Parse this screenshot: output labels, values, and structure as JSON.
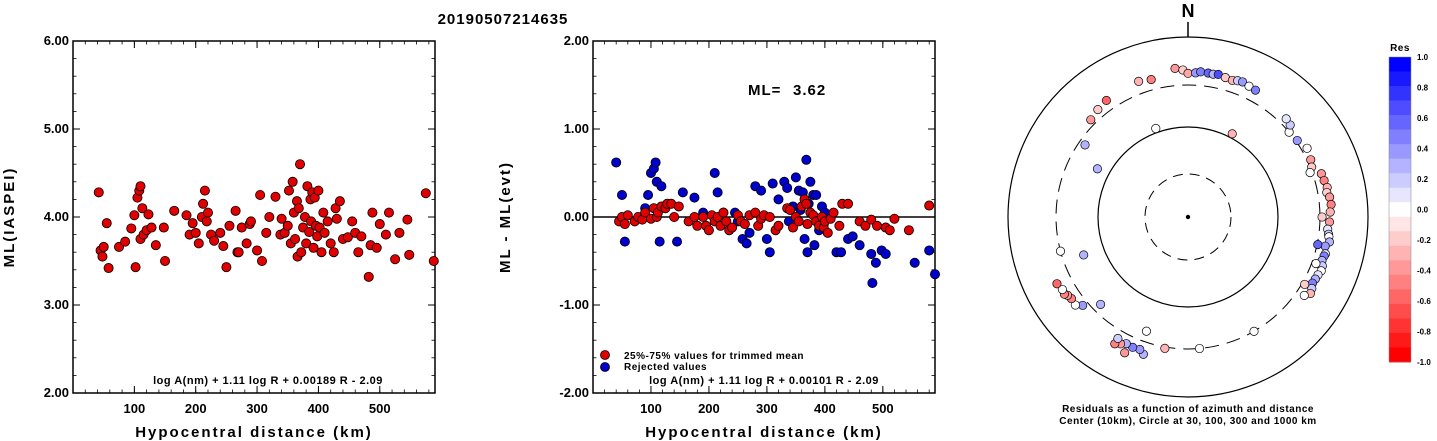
{
  "title": "20190507214635",
  "chart_data": [
    {
      "type": "scatter",
      "ylabel": "ML(IASPEI)",
      "xlabel": "Hypocentral distance (km)",
      "xlim": [
        0,
        590
      ],
      "ylim": [
        2.0,
        6.0
      ],
      "xticks": [
        "100",
        "200",
        "300",
        "400",
        "500"
      ],
      "yticks": [
        "2.00",
        "3.00",
        "4.00",
        "5.00",
        "6.00"
      ],
      "formula": "log A(nm) + 1.11 log R + 0.00189 R - 2.09",
      "marker_color": "#e00000",
      "points": [
        [
          42,
          4.28
        ],
        [
          45,
          3.62
        ],
        [
          48,
          3.55
        ],
        [
          50,
          3.66
        ],
        [
          55,
          3.93
        ],
        [
          58,
          3.42
        ],
        [
          75,
          3.66
        ],
        [
          85,
          3.72
        ],
        [
          95,
          3.87
        ],
        [
          100,
          4.02
        ],
        [
          102,
          3.43
        ],
        [
          105,
          4.22
        ],
        [
          108,
          4.3
        ],
        [
          110,
          4.35
        ],
        [
          110,
          3.75
        ],
        [
          113,
          4.1
        ],
        [
          115,
          3.8
        ],
        [
          120,
          3.85
        ],
        [
          123,
          4.03
        ],
        [
          128,
          3.88
        ],
        [
          135,
          3.68
        ],
        [
          148,
          3.88
        ],
        [
          150,
          3.5
        ],
        [
          165,
          4.07
        ],
        [
          185,
          4.02
        ],
        [
          190,
          3.8
        ],
        [
          195,
          3.93
        ],
        [
          200,
          3.82
        ],
        [
          205,
          3.7
        ],
        [
          210,
          4.0
        ],
        [
          212,
          4.15
        ],
        [
          215,
          4.3
        ],
        [
          218,
          3.95
        ],
        [
          220,
          4.05
        ],
        [
          225,
          3.8
        ],
        [
          230,
          3.73
        ],
        [
          240,
          3.82
        ],
        [
          245,
          3.67
        ],
        [
          250,
          3.43
        ],
        [
          255,
          3.9
        ],
        [
          265,
          4.07
        ],
        [
          268,
          3.6
        ],
        [
          270,
          3.6
        ],
        [
          275,
          3.88
        ],
        [
          283,
          3.7
        ],
        [
          288,
          3.92
        ],
        [
          290,
          3.95
        ],
        [
          300,
          3.62
        ],
        [
          305,
          4.25
        ],
        [
          308,
          3.5
        ],
        [
          315,
          3.82
        ],
        [
          320,
          4.0
        ],
        [
          330,
          4.23
        ],
        [
          338,
          3.8
        ],
        [
          340,
          3.98
        ],
        [
          345,
          3.82
        ],
        [
          350,
          3.9
        ],
        [
          352,
          4.3
        ],
        [
          355,
          3.7
        ],
        [
          358,
          4.4
        ],
        [
          360,
          4.05
        ],
        [
          362,
          3.75
        ],
        [
          365,
          4.18
        ],
        [
          366,
          3.55
        ],
        [
          368,
          4.1
        ],
        [
          370,
          4.6
        ],
        [
          372,
          3.6
        ],
        [
          375,
          3.88
        ],
        [
          378,
          4.0
        ],
        [
          380,
          3.7
        ],
        [
          382,
          4.35
        ],
        [
          385,
          3.83
        ],
        [
          387,
          4.2
        ],
        [
          388,
          3.95
        ],
        [
          390,
          4.28
        ],
        [
          392,
          3.65
        ],
        [
          394,
          4.22
        ],
        [
          396,
          3.9
        ],
        [
          398,
          3.78
        ],
        [
          400,
          4.3
        ],
        [
          402,
          3.88
        ],
        [
          405,
          3.6
        ],
        [
          408,
          4.05
        ],
        [
          410,
          3.82
        ],
        [
          415,
          3.95
        ],
        [
          420,
          3.7
        ],
        [
          425,
          3.6
        ],
        [
          428,
          4.1
        ],
        [
          430,
          3.98
        ],
        [
          435,
          4.18
        ],
        [
          440,
          3.75
        ],
        [
          448,
          3.77
        ],
        [
          455,
          3.95
        ],
        [
          460,
          3.82
        ],
        [
          465,
          3.6
        ],
        [
          470,
          3.78
        ],
        [
          482,
          3.32
        ],
        [
          485,
          3.68
        ],
        [
          488,
          4.05
        ],
        [
          495,
          3.65
        ],
        [
          500,
          3.92
        ],
        [
          510,
          3.8
        ],
        [
          515,
          4.05
        ],
        [
          525,
          3.52
        ],
        [
          532,
          3.82
        ],
        [
          545,
          3.97
        ],
        [
          548,
          3.57
        ],
        [
          575,
          4.27
        ],
        [
          588,
          3.5
        ]
      ]
    },
    {
      "type": "scatter",
      "ylabel": "ML - ML(evt)",
      "xlabel": "Hypocentral distance (km)",
      "xlim": [
        0,
        590
      ],
      "ylim": [
        -2.0,
        2.0
      ],
      "xticks": [
        "100",
        "200",
        "300",
        "400",
        "500"
      ],
      "yticks": [
        "-2.00",
        "-1.00",
        "0.00",
        "1.00",
        "2.00"
      ],
      "ml_label": "ML=",
      "ml_value": "3.62",
      "legend": [
        "25%-75% values for trimmed mean",
        "Rejected values"
      ],
      "formula": "log A(nm) + 1.11 log R + 0.00101 R - 2.09",
      "colors": {
        "trimmed": "#e00000",
        "rejected": "#0000cc"
      },
      "trimmed": [
        [
          45,
          -0.05
        ],
        [
          50,
          0.0
        ],
        [
          55,
          -0.08
        ],
        [
          60,
          0.02
        ],
        [
          72,
          -0.05
        ],
        [
          78,
          0.0
        ],
        [
          85,
          -0.03
        ],
        [
          90,
          0.05
        ],
        [
          100,
          -0.02
        ],
        [
          105,
          0.1
        ],
        [
          110,
          0.0
        ],
        [
          112,
          0.05
        ],
        [
          118,
          0.12
        ],
        [
          125,
          0.1
        ],
        [
          128,
          0.15
        ],
        [
          135,
          0.15
        ],
        [
          140,
          0.0
        ],
        [
          148,
          0.12
        ],
        [
          165,
          -0.05
        ],
        [
          175,
          0.0
        ],
        [
          180,
          -0.1
        ],
        [
          190,
          0.0
        ],
        [
          195,
          -0.1
        ],
        [
          200,
          -0.15
        ],
        [
          205,
          0.02
        ],
        [
          210,
          -0.05
        ],
        [
          215,
          0.0
        ],
        [
          220,
          -0.1
        ],
        [
          225,
          0.05
        ],
        [
          230,
          -0.05
        ],
        [
          235,
          -0.15
        ],
        [
          240,
          -0.12
        ],
        [
          250,
          0.02
        ],
        [
          255,
          -0.05
        ],
        [
          262,
          -0.08
        ],
        [
          270,
          0.02
        ],
        [
          280,
          0.05
        ],
        [
          285,
          -0.1
        ],
        [
          290,
          -0.02
        ],
        [
          295,
          0.02
        ],
        [
          305,
          0.0
        ],
        [
          315,
          -0.15
        ],
        [
          320,
          -0.1
        ],
        [
          335,
          0.1
        ],
        [
          340,
          0.08
        ],
        [
          345,
          -0.12
        ],
        [
          350,
          0.0
        ],
        [
          355,
          -0.05
        ],
        [
          360,
          0.12
        ],
        [
          365,
          0.2
        ],
        [
          368,
          0.15
        ],
        [
          370,
          -0.08
        ],
        [
          375,
          0.05
        ],
        [
          380,
          0.02
        ],
        [
          385,
          -0.05
        ],
        [
          390,
          -0.1
        ],
        [
          395,
          0.0
        ],
        [
          398,
          -0.12
        ],
        [
          400,
          -0.05
        ],
        [
          405,
          -0.18
        ],
        [
          410,
          -0.02
        ],
        [
          415,
          0.05
        ],
        [
          425,
          -0.1
        ],
        [
          430,
          0.15
        ],
        [
          440,
          0.15
        ],
        [
          460,
          -0.05
        ],
        [
          470,
          -0.1
        ],
        [
          480,
          -0.03
        ],
        [
          490,
          -0.1
        ],
        [
          505,
          -0.12
        ],
        [
          512,
          -0.15
        ],
        [
          520,
          -0.02
        ],
        [
          545,
          -0.15
        ],
        [
          580,
          0.13
        ]
      ],
      "rejected": [
        [
          40,
          0.62
        ],
        [
          50,
          0.25
        ],
        [
          55,
          -0.28
        ],
        [
          90,
          0.1
        ],
        [
          95,
          0.25
        ],
        [
          100,
          0.5
        ],
        [
          105,
          0.55
        ],
        [
          108,
          0.62
        ],
        [
          110,
          0.4
        ],
        [
          115,
          -0.28
        ],
        [
          118,
          0.35
        ],
        [
          145,
          -0.28
        ],
        [
          155,
          0.28
        ],
        [
          175,
          0.22
        ],
        [
          190,
          0.05
        ],
        [
          210,
          0.5
        ],
        [
          215,
          0.28
        ],
        [
          225,
          0.05
        ],
        [
          245,
          0.05
        ],
        [
          250,
          -0.05
        ],
        [
          258,
          -0.25
        ],
        [
          265,
          -0.3
        ],
        [
          270,
          -0.18
        ],
        [
          280,
          0.35
        ],
        [
          290,
          0.3
        ],
        [
          300,
          -0.25
        ],
        [
          305,
          -0.4
        ],
        [
          310,
          0.38
        ],
        [
          320,
          0.2
        ],
        [
          330,
          0.4
        ],
        [
          335,
          0.33
        ],
        [
          338,
          -0.05
        ],
        [
          345,
          0.12
        ],
        [
          350,
          0.45
        ],
        [
          355,
          0.3
        ],
        [
          358,
          0.08
        ],
        [
          362,
          0.28
        ],
        [
          365,
          -0.25
        ],
        [
          368,
          0.65
        ],
        [
          370,
          -0.4
        ],
        [
          372,
          0.15
        ],
        [
          375,
          0.4
        ],
        [
          380,
          0.25
        ],
        [
          382,
          -0.32
        ],
        [
          385,
          0.25
        ],
        [
          390,
          -0.15
        ],
        [
          395,
          0.12
        ],
        [
          398,
          -0.08
        ],
        [
          400,
          0.05
        ],
        [
          420,
          -0.4
        ],
        [
          428,
          -0.4
        ],
        [
          440,
          -0.25
        ],
        [
          448,
          -0.22
        ],
        [
          460,
          -0.32
        ],
        [
          480,
          -0.42
        ],
        [
          482,
          -0.75
        ],
        [
          488,
          -0.52
        ],
        [
          498,
          -0.38
        ],
        [
          505,
          -0.42
        ],
        [
          555,
          -0.52
        ],
        [
          580,
          -0.38
        ],
        [
          590,
          -0.65
        ]
      ]
    },
    {
      "type": "scatter",
      "north_label": "N",
      "caption_line1": "Residuals as a function of azimuth and distance",
      "caption_line2": "Center (10km), Circle at 30, 100, 300 and 1000 km",
      "colorbar_title": "Res",
      "colorbar_ticks": [
        "1.0",
        "0.8",
        "0.6",
        "0.4",
        "0.2",
        "0.0",
        "-0.2",
        "-0.4",
        "-0.6",
        "-0.8",
        "-1.0"
      ],
      "ring_distances_km": [
        30,
        100,
        300,
        1000
      ],
      "points_az_dist_res": [
        [
          355,
          550,
          -0.4
        ],
        [
          358,
          520,
          -0.2
        ],
        [
          0,
          470,
          -0.35
        ],
        [
          3,
          480,
          0.4
        ],
        [
          5,
          500,
          0.5
        ],
        [
          8,
          495,
          0.6
        ],
        [
          10,
          490,
          0.3
        ],
        [
          12,
          500,
          0.7
        ],
        [
          15,
          480,
          -0.2
        ],
        [
          18,
          470,
          -0.3
        ],
        [
          20,
          490,
          0.2
        ],
        [
          22,
          500,
          0.4
        ],
        [
          25,
          480,
          0.0
        ],
        [
          28,
          470,
          0.5
        ],
        [
          345,
          450,
          -0.5
        ],
        [
          340,
          480,
          -0.3
        ],
        [
          325,
          450,
          -0.6
        ],
        [
          320,
          420,
          -0.2
        ],
        [
          315,
          380,
          -0.4
        ],
        [
          305,
          270,
          0.3
        ],
        [
          340,
          120,
          0.0
        ],
        [
          28,
          120,
          -0.3
        ],
        [
          50,
          300,
          0.0
        ],
        [
          55,
          320,
          0.4
        ],
        [
          48,
          380,
          0.2
        ],
        [
          45,
          400,
          0.1
        ],
        [
          60,
          380,
          0.0
        ],
        [
          65,
          350,
          -0.4
        ],
        [
          68,
          320,
          -0.2
        ],
        [
          70,
          290,
          0.0
        ],
        [
          72,
          420,
          -0.4
        ],
        [
          75,
          430,
          -0.5
        ],
        [
          78,
          450,
          -0.3
        ],
        [
          80,
          430,
          -0.2
        ],
        [
          82,
          460,
          -0.4
        ],
        [
          85,
          470,
          -0.5
        ],
        [
          88,
          450,
          -0.3
        ],
        [
          90,
          330,
          -0.2
        ],
        [
          92,
          440,
          -0.4
        ],
        [
          95,
          420,
          0.1
        ],
        [
          97,
          440,
          0.2
        ],
        [
          98,
          450,
          0.0
        ],
        [
          100,
          470,
          0.3
        ],
        [
          102,
          420,
          0.4
        ],
        [
          105,
          450,
          0.1
        ],
        [
          106,
          440,
          0.5
        ],
        [
          108,
          430,
          0.3
        ],
        [
          110,
          460,
          0.2
        ],
        [
          112,
          470,
          0.0
        ],
        [
          114,
          450,
          0.1
        ],
        [
          116,
          440,
          0.3
        ],
        [
          118,
          430,
          0.5
        ],
        [
          120,
          460,
          0.2
        ],
        [
          122,
          480,
          -0.3
        ],
        [
          124,
          420,
          0.0
        ],
        [
          110,
          360,
          0.0
        ],
        [
          102,
          310,
          0.6
        ],
        [
          120,
          340,
          -0.2
        ],
        [
          150,
          300,
          0.0
        ],
        [
          175,
          300,
          0.0
        ],
        [
          190,
          320,
          -0.3
        ],
        [
          198,
          480,
          0.3
        ],
        [
          200,
          430,
          0.4
        ],
        [
          203,
          440,
          0.5
        ],
        [
          206,
          430,
          0.3
        ],
        [
          208,
          470,
          -0.4
        ],
        [
          210,
          510,
          -0.5
        ],
        [
          225,
          260,
          0.3
        ],
        [
          230,
          380,
          0.4
        ],
        [
          232,
          460,
          0.0
        ],
        [
          235,
          450,
          -0.5
        ],
        [
          237,
          470,
          -0.4
        ],
        [
          238,
          500,
          -0.5
        ],
        [
          240,
          490,
          0.0
        ],
        [
          243,
          520,
          -0.6
        ],
        [
          200,
          250,
          0.0
        ],
        [
          250,
          200,
          0.3
        ],
        [
          255,
          300,
          0.0
        ],
        [
          298,
          160,
          0.3
        ],
        [
          210,
          420,
          0.2
        ],
        [
          205,
          560,
          -0.4
        ]
      ]
    }
  ]
}
